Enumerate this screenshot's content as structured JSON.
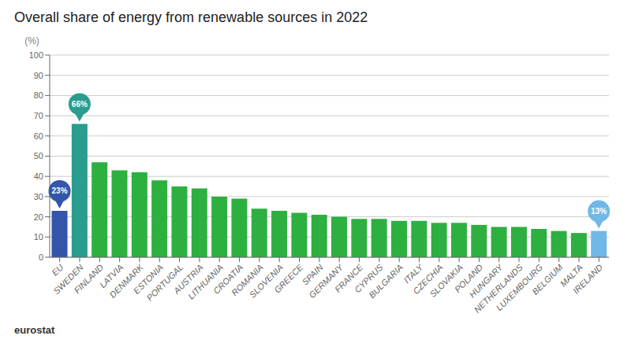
{
  "chart_data": {
    "type": "bar",
    "title": "Overall share of energy from renewable sources in 2022",
    "ylabel": "(%)",
    "categories": [
      "EU",
      "SWEDEN",
      "FINLAND",
      "LATVIA",
      "DENMARK",
      "ESTONIA",
      "PORTUGAL",
      "AUSTRIA",
      "LITHUANIA",
      "CROATIA",
      "ROMANIA",
      "SLOVENIA",
      "GREECE",
      "SPAIN",
      "GERMANY",
      "FRANCE",
      "CYPRUS",
      "BULGARIA",
      "ITALY",
      "CZECHIA",
      "SLOVAKIA",
      "POLAND",
      "HUNGARY",
      "NETHERLANDS",
      "LUXEMBOURG",
      "BELGIUM",
      "MALTA",
      "IRELAND"
    ],
    "values": [
      23,
      66,
      47,
      43,
      42,
      38,
      35,
      34,
      30,
      29,
      24,
      23,
      22,
      21,
      20,
      19,
      19,
      18,
      18,
      17,
      17,
      16,
      15,
      15,
      14,
      13,
      12,
      13
    ],
    "colors": [
      "#3355aa",
      "#2a9d8f",
      "#2db040",
      "#2db040",
      "#2db040",
      "#2db040",
      "#2db040",
      "#2db040",
      "#2db040",
      "#2db040",
      "#2db040",
      "#2db040",
      "#2db040",
      "#2db040",
      "#2db040",
      "#2db040",
      "#2db040",
      "#2db040",
      "#2db040",
      "#2db040",
      "#2db040",
      "#2db040",
      "#2db040",
      "#2db040",
      "#2db040",
      "#2db040",
      "#2db040",
      "#70b8e8"
    ],
    "ylim": [
      0,
      100
    ],
    "yticks": [
      0,
      10,
      20,
      30,
      40,
      50,
      60,
      70,
      80,
      90,
      100
    ],
    "grid": true,
    "annotations": [
      {
        "category": "EU",
        "text": "23%",
        "color": "#3355aa"
      },
      {
        "category": "SWEDEN",
        "text": "66%",
        "color": "#2a9d8f"
      },
      {
        "category": "IRELAND",
        "text": "13%",
        "color": "#70b8e8"
      },
      {
        "text": "eurostat"
      }
    ]
  }
}
